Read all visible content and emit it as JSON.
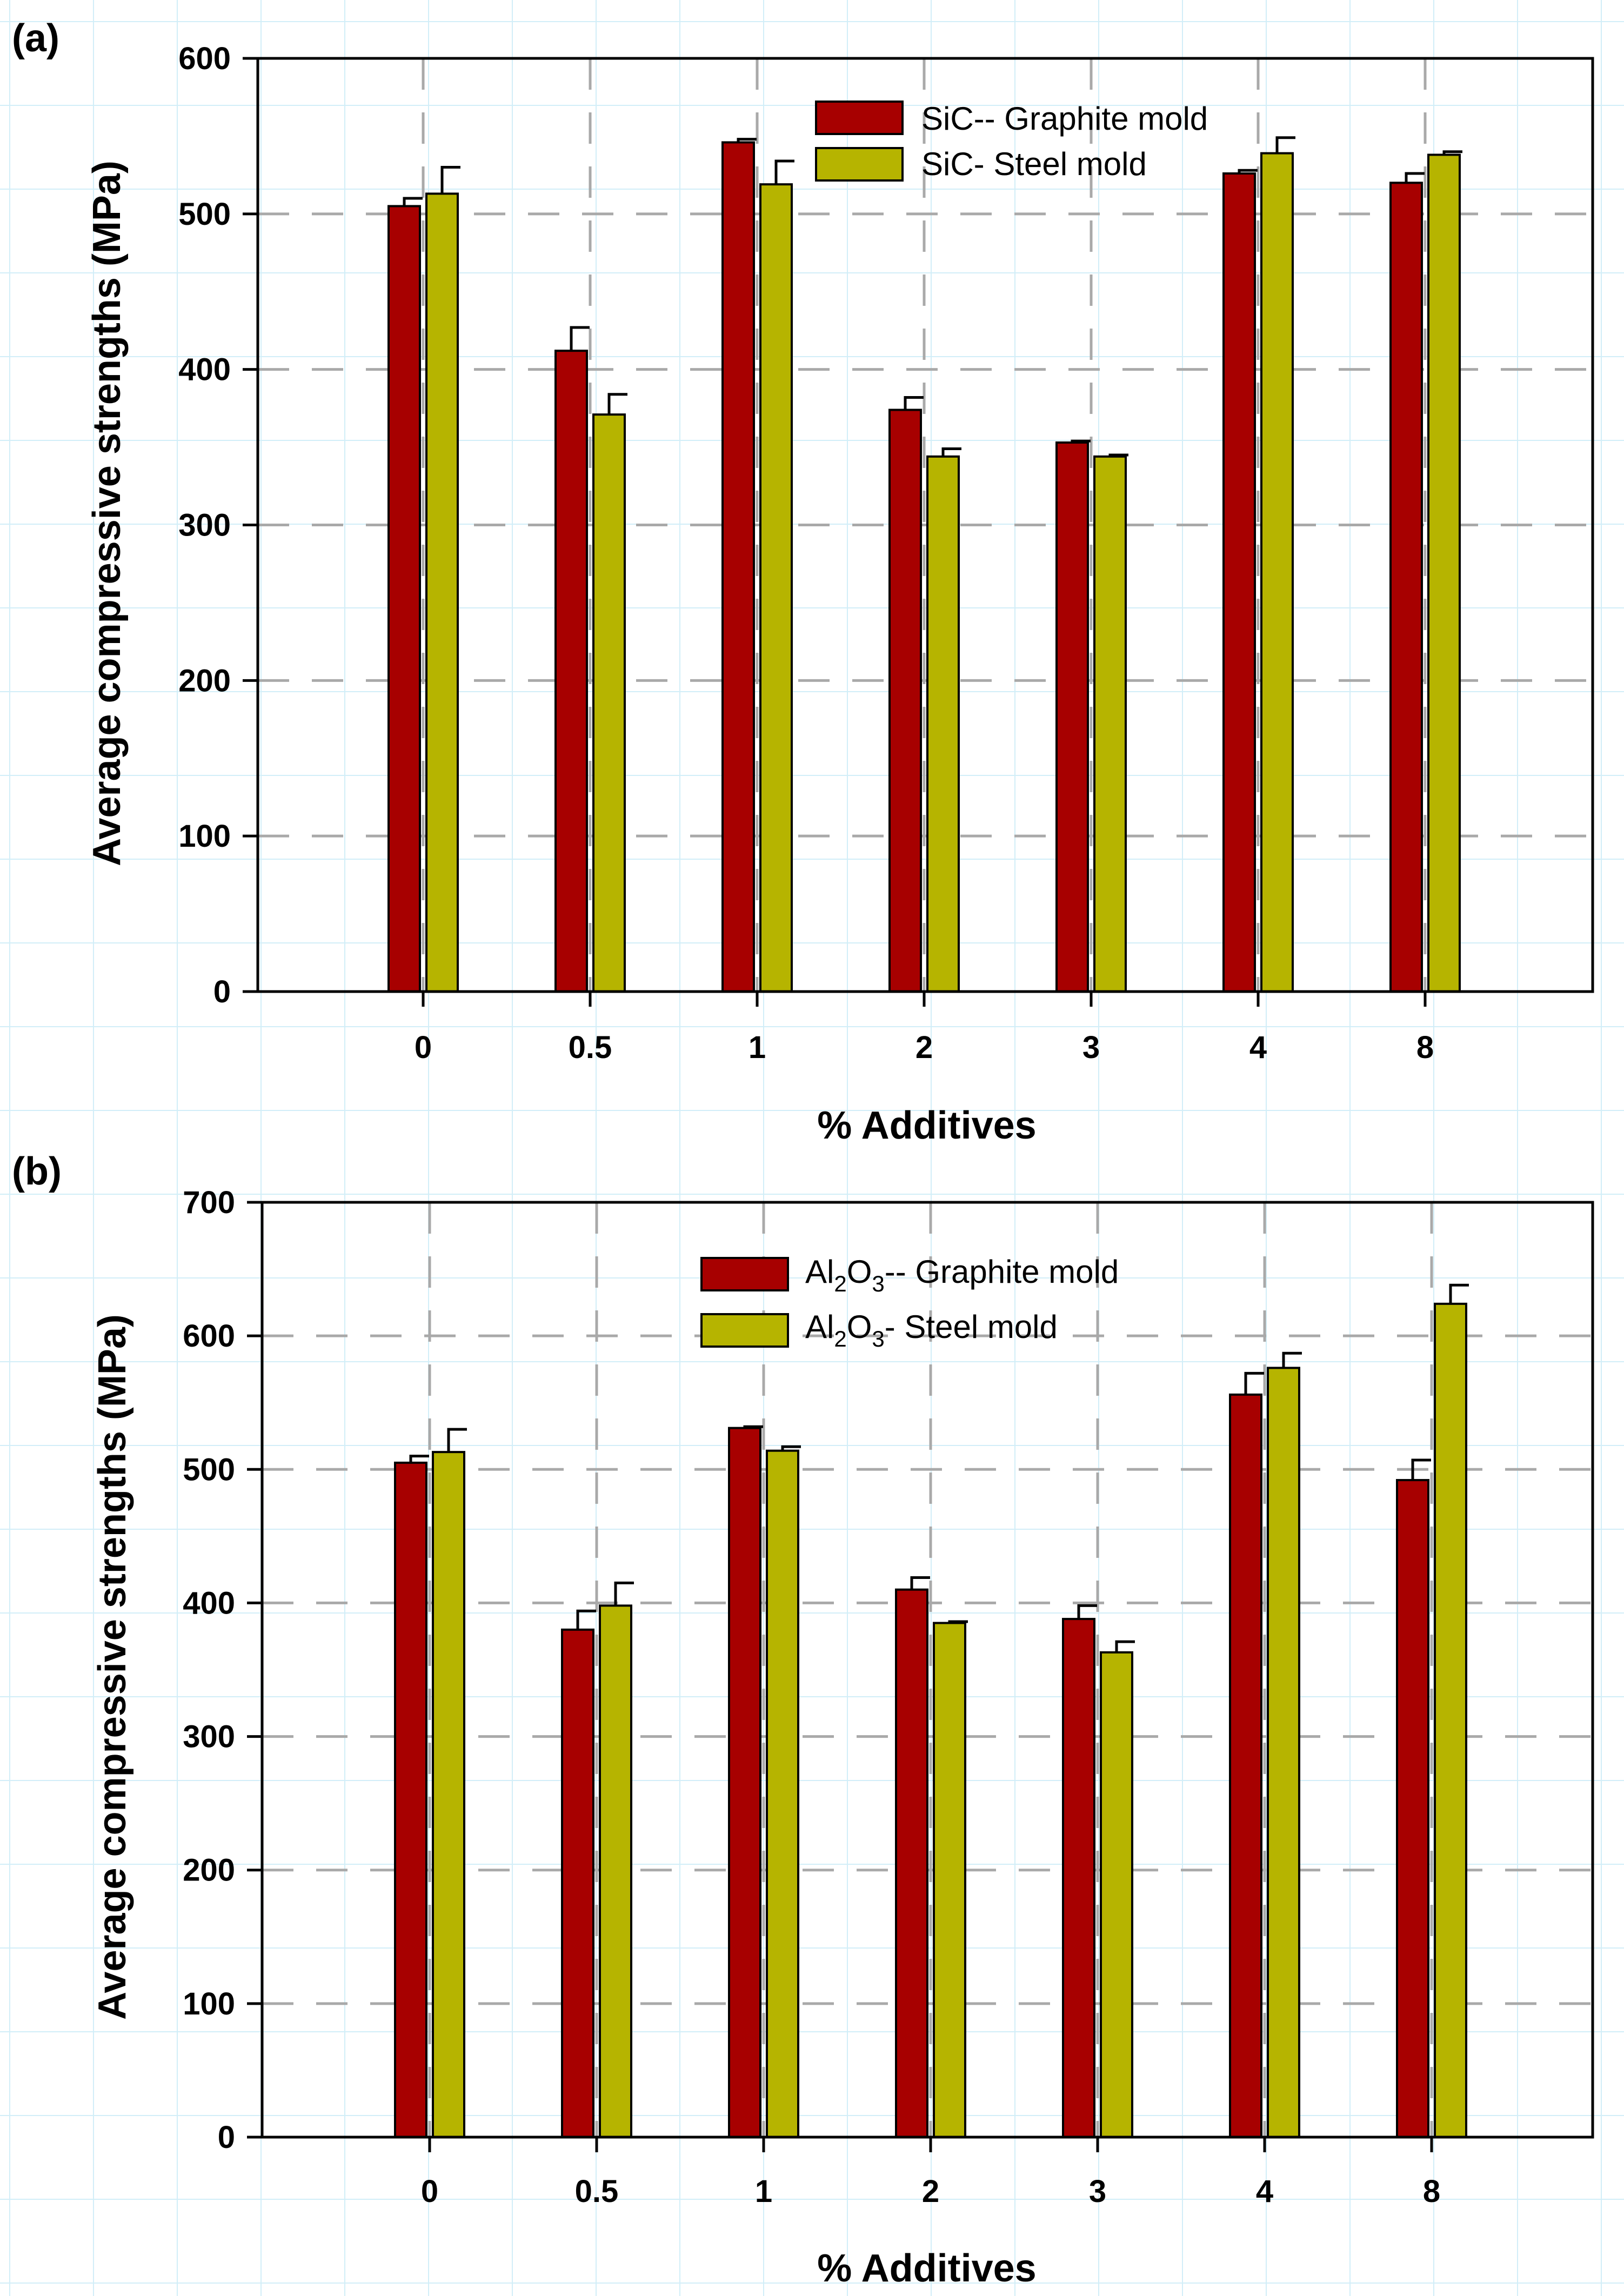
{
  "colors": {
    "graphite": "#a70000",
    "steel": "#b6b400"
  },
  "chart_data": [
    {
      "type": "bar",
      "panel_label": "(a)",
      "categories": [
        "0",
        "0.5",
        "1",
        "2",
        "3",
        "4",
        "8"
      ],
      "xlabel": "% Additives",
      "ylabel": "Average compressive strengths (MPa)",
      "ylim": [
        0,
        600
      ],
      "yticks": [
        0,
        100,
        200,
        300,
        400,
        500,
        600
      ],
      "grid": true,
      "legend_position": "top-center",
      "series": [
        {
          "name": "SiC-- Graphite mold",
          "color_key": "graphite",
          "values": [
            505,
            412,
            546,
            374,
            353,
            526,
            520
          ],
          "errors": [
            5,
            15,
            2,
            8,
            1,
            2,
            6
          ]
        },
        {
          "name": "SiC- Steel mold",
          "color_key": "steel",
          "values": [
            513,
            371,
            519,
            344,
            344,
            539,
            538
          ],
          "errors": [
            17,
            13,
            15,
            5,
            1,
            10,
            2
          ]
        }
      ]
    },
    {
      "type": "bar",
      "panel_label": "(b)",
      "categories": [
        "0",
        "0.5",
        "1",
        "2",
        "3",
        "4",
        "8"
      ],
      "xlabel": "% Additives",
      "ylabel": "Average compressive strengths (MPa)",
      "ylim": [
        0,
        700
      ],
      "yticks": [
        0,
        100,
        200,
        300,
        400,
        500,
        600,
        700
      ],
      "grid": true,
      "legend_position": "top-center",
      "series": [
        {
          "name": "Al2O3-- Graphite mold",
          "label_base": "Al",
          "label_sub1": "2",
          "label_mid": "O",
          "label_sub2": "3",
          "label_rest": "-- Graphite mold",
          "color_key": "graphite",
          "values": [
            505,
            380,
            531,
            410,
            388,
            556,
            492
          ],
          "errors": [
            5,
            14,
            1,
            9,
            10,
            16,
            15
          ]
        },
        {
          "name": "Al2O3- Steel mold",
          "label_base": "Al",
          "label_sub1": "2",
          "label_mid": "O",
          "label_sub2": "3",
          "label_rest": "- Steel mold",
          "color_key": "steel",
          "values": [
            513,
            398,
            514,
            385,
            363,
            576,
            624
          ],
          "errors": [
            17,
            17,
            3,
            1,
            8,
            11,
            14
          ]
        }
      ]
    }
  ]
}
